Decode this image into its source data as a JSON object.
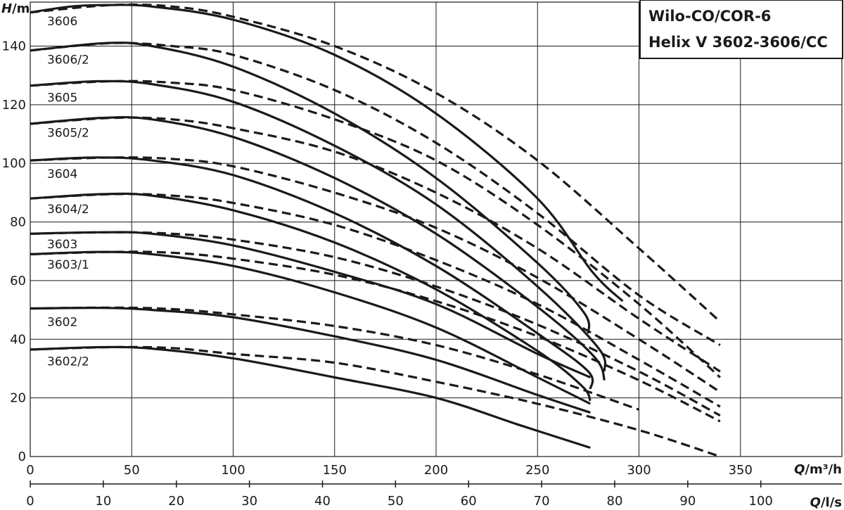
{
  "chart_data": {
    "type": "line",
    "title_lines": [
      "Wilo-CO/COR-6",
      "Helix V 3602-3606/CC"
    ],
    "ylabel": {
      "symbol": "H",
      "unit": "/m"
    },
    "xlabel": {
      "symbol": "Q",
      "unit": "/m³/h"
    },
    "x2label": {
      "symbol": "Q",
      "unit": "/l/s"
    },
    "xlim": [
      0,
      400
    ],
    "ylim": [
      0,
      155
    ],
    "x2lim": [
      0,
      111.1
    ],
    "xticks": [
      0,
      50,
      100,
      150,
      200,
      250,
      300,
      350
    ],
    "yticks": [
      0,
      20,
      40,
      60,
      80,
      100,
      120,
      140
    ],
    "x2ticks": [
      0,
      10,
      20,
      30,
      40,
      50,
      60,
      70,
      80,
      90,
      100
    ],
    "grid": true,
    "line_color": "#1a1a1a",
    "series": [
      {
        "name": "3606",
        "style": "solid",
        "points": [
          [
            0,
            151.5
          ],
          [
            20,
            153.5
          ],
          [
            37,
            154
          ],
          [
            60,
            153.5
          ],
          [
            100,
            149
          ],
          [
            150,
            137
          ],
          [
            200,
            117
          ],
          [
            250,
            88
          ],
          [
            277,
            63
          ],
          [
            292,
            53
          ]
        ]
      },
      {
        "name": "3606",
        "style": "dashed",
        "points": [
          [
            0,
            151.5
          ],
          [
            40,
            154
          ],
          [
            70,
            153.5
          ],
          [
            100,
            150
          ],
          [
            150,
            140
          ],
          [
            200,
            124
          ],
          [
            250,
            101
          ],
          [
            300,
            71
          ],
          [
            340,
            46
          ]
        ]
      },
      {
        "name": "3606/2",
        "style": "solid",
        "points": [
          [
            0,
            138.5
          ],
          [
            37,
            141
          ],
          [
            60,
            140
          ],
          [
            100,
            133
          ],
          [
            150,
            117
          ],
          [
            200,
            95
          ],
          [
            250,
            66
          ],
          [
            273,
            49
          ],
          [
            275,
            42
          ]
        ]
      },
      {
        "name": "3606/2",
        "style": "dashed",
        "points": [
          [
            0,
            138.5
          ],
          [
            40,
            141
          ],
          [
            70,
            140
          ],
          [
            100,
            137
          ],
          [
            150,
            125
          ],
          [
            200,
            107
          ],
          [
            250,
            83
          ],
          [
            300,
            55
          ],
          [
            340,
            38
          ]
        ]
      },
      {
        "name": "3605",
        "style": "solid",
        "points": [
          [
            0,
            126.5
          ],
          [
            33,
            128
          ],
          [
            60,
            127
          ],
          [
            100,
            121
          ],
          [
            150,
            106
          ],
          [
            200,
            86
          ],
          [
            250,
            58
          ],
          [
            280,
            37
          ],
          [
            283,
            29
          ]
        ]
      },
      {
        "name": "3605",
        "style": "dashed",
        "points": [
          [
            0,
            126.5
          ],
          [
            40,
            128
          ],
          [
            70,
            127.5
          ],
          [
            100,
            125
          ],
          [
            150,
            115
          ],
          [
            200,
            101
          ],
          [
            250,
            79
          ],
          [
            300,
            52
          ],
          [
            340,
            27
          ]
        ]
      },
      {
        "name": "3605/2",
        "style": "solid",
        "points": [
          [
            0,
            113.5
          ],
          [
            35,
            115.5
          ],
          [
            60,
            115
          ],
          [
            100,
            109
          ],
          [
            150,
            95
          ],
          [
            200,
            76
          ],
          [
            250,
            51
          ],
          [
            278,
            34
          ],
          [
            283,
            26
          ]
        ]
      },
      {
        "name": "3605/2",
        "style": "dashed",
        "points": [
          [
            0,
            113.5
          ],
          [
            40,
            115.5
          ],
          [
            70,
            115
          ],
          [
            100,
            112
          ],
          [
            150,
            104
          ],
          [
            200,
            90
          ],
          [
            250,
            71
          ],
          [
            300,
            47
          ],
          [
            340,
            29
          ]
        ]
      },
      {
        "name": "3604",
        "style": "solid",
        "points": [
          [
            0,
            101
          ],
          [
            33,
            102
          ],
          [
            60,
            101
          ],
          [
            100,
            96
          ],
          [
            150,
            83
          ],
          [
            200,
            65
          ],
          [
            250,
            42
          ],
          [
            275,
            29
          ],
          [
            276,
            23
          ]
        ]
      },
      {
        "name": "3604",
        "style": "dashed",
        "points": [
          [
            0,
            101
          ],
          [
            40,
            102
          ],
          [
            70,
            101.5
          ],
          [
            100,
            99
          ],
          [
            150,
            90
          ],
          [
            200,
            78
          ],
          [
            250,
            61
          ],
          [
            300,
            40
          ],
          [
            340,
            22
          ]
        ]
      },
      {
        "name": "3604/2",
        "style": "solid",
        "points": [
          [
            0,
            88
          ],
          [
            35,
            89.5
          ],
          [
            60,
            89
          ],
          [
            100,
            84
          ],
          [
            150,
            73
          ],
          [
            200,
            57
          ],
          [
            250,
            36
          ],
          [
            272,
            24
          ],
          [
            276,
            19
          ]
        ]
      },
      {
        "name": "3604/2",
        "style": "dashed",
        "points": [
          [
            0,
            88
          ],
          [
            40,
            89.5
          ],
          [
            70,
            89
          ],
          [
            100,
            86.5
          ],
          [
            150,
            79
          ],
          [
            200,
            67
          ],
          [
            250,
            52
          ],
          [
            300,
            33
          ],
          [
            340,
            17
          ]
        ]
      },
      {
        "name": "3603",
        "style": "solid",
        "points": [
          [
            0,
            76
          ],
          [
            35,
            76.5
          ],
          [
            60,
            76
          ],
          [
            100,
            72
          ],
          [
            150,
            63
          ],
          [
            200,
            52
          ],
          [
            250,
            35
          ],
          [
            276,
            27
          ]
        ]
      },
      {
        "name": "3603",
        "style": "dashed",
        "points": [
          [
            0,
            76
          ],
          [
            40,
            76.5
          ],
          [
            70,
            76
          ],
          [
            100,
            74
          ],
          [
            150,
            68
          ],
          [
            200,
            58
          ],
          [
            250,
            45
          ],
          [
            300,
            29
          ],
          [
            340,
            14
          ]
        ]
      },
      {
        "name": "3603/1",
        "style": "solid",
        "points": [
          [
            0,
            69
          ],
          [
            35,
            69.8
          ],
          [
            60,
            69
          ],
          [
            100,
            65
          ],
          [
            150,
            56
          ],
          [
            200,
            44
          ],
          [
            250,
            27
          ],
          [
            276,
            18
          ]
        ]
      },
      {
        "name": "3603/1",
        "style": "dashed",
        "points": [
          [
            0,
            69
          ],
          [
            40,
            69.8
          ],
          [
            70,
            69.5
          ],
          [
            100,
            67.5
          ],
          [
            150,
            62
          ],
          [
            200,
            53
          ],
          [
            250,
            41
          ],
          [
            300,
            26
          ],
          [
            340,
            12
          ]
        ]
      },
      {
        "name": "3602",
        "style": "solid",
        "points": [
          [
            0,
            50.5
          ],
          [
            35,
            50.7
          ],
          [
            60,
            50
          ],
          [
            100,
            47.5
          ],
          [
            150,
            41
          ],
          [
            200,
            33
          ],
          [
            250,
            21
          ],
          [
            276,
            15
          ]
        ]
      },
      {
        "name": "3602",
        "style": "dashed",
        "points": [
          [
            0,
            50.5
          ],
          [
            40,
            50.8
          ],
          [
            70,
            50.3
          ],
          [
            100,
            48.5
          ],
          [
            150,
            44.5
          ],
          [
            200,
            38
          ],
          [
            250,
            28
          ],
          [
            300,
            16
          ]
        ]
      },
      {
        "name": "3602/2",
        "style": "solid",
        "points": [
          [
            0,
            36.5
          ],
          [
            35,
            37.3
          ],
          [
            60,
            36.8
          ],
          [
            100,
            33.5
          ],
          [
            150,
            27
          ],
          [
            200,
            20
          ],
          [
            240,
            11
          ],
          [
            276,
            3
          ]
        ]
      },
      {
        "name": "3602/2",
        "style": "dashed",
        "points": [
          [
            0,
            36.5
          ],
          [
            40,
            37.3
          ],
          [
            70,
            37
          ],
          [
            100,
            35
          ],
          [
            150,
            32
          ],
          [
            200,
            25.5
          ],
          [
            250,
            18
          ],
          [
            300,
            9
          ],
          [
            340,
            0
          ]
        ]
      }
    ],
    "curve_labels": [
      {
        "text": "3606",
        "y": 148.5
      },
      {
        "text": "3606/2",
        "y": 135.5
      },
      {
        "text": "3605",
        "y": 122.5
      },
      {
        "text": "3605/2",
        "y": 110.5
      },
      {
        "text": "3604",
        "y": 96.5
      },
      {
        "text": "3604/2",
        "y": 84.5
      },
      {
        "text": "3603",
        "y": 72.5
      },
      {
        "text": "3603/1",
        "y": 65.5
      },
      {
        "text": "3602",
        "y": 46
      },
      {
        "text": "3602/2",
        "y": 32.5
      }
    ]
  }
}
